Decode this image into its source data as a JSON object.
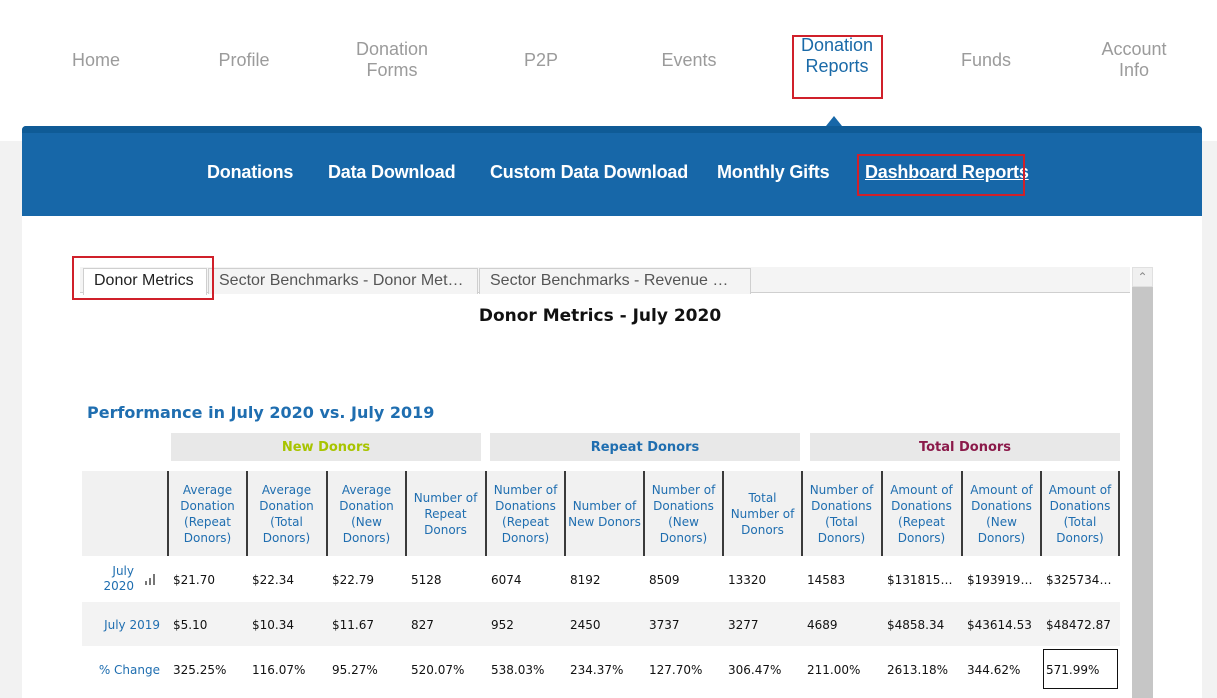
{
  "top_nav": {
    "items": [
      "Home",
      "Profile",
      "Donation\nForms",
      "P2P",
      "Events",
      "Donation\nReports",
      "Funds",
      "Account\nInfo"
    ],
    "active": "Donation Reports"
  },
  "sub_nav": {
    "items": [
      "Donations",
      "Data Download",
      "Custom Data Download",
      "Monthly Gifts",
      "Dashboard Reports"
    ],
    "active": "Dashboard Reports"
  },
  "tabs": [
    "Donor Metrics",
    "Sector Benchmarks - Donor Met…",
    "Sector Benchmarks - Revenue …"
  ],
  "report": {
    "title": "Donor Metrics - July 2020",
    "performance_title": "Performance in July 2020 vs. July 2019",
    "groups": [
      {
        "label": "New Donors",
        "color": "#a8c400"
      },
      {
        "label": "Repeat Donors",
        "color": "#1f6eb0"
      },
      {
        "label": "Total Donors",
        "color": "#8b1a4a"
      }
    ],
    "columns": [
      "Average\nDonation\n(Repeat\nDonors)",
      "Average\nDonation\n(Total\nDonors)",
      "Average\nDonation\n(New\nDonors)",
      "Number of\nRepeat\nDonors",
      "Number of\nDonations\n(Repeat\nDonors)",
      "Number of\nNew Donors",
      "Number of\nDonations\n(New\nDonors)",
      "Total\nNumber of\nDonors",
      "Number of\nDonations\n(Total\nDonors)",
      "Amount of\nDonations\n(Repeat\nDonors)",
      "Amount of\nDonations\n(New\nDonors)",
      "Amount of\nDonations\n(Total\nDonors)"
    ],
    "rows": [
      {
        "label": "July\n2020",
        "values": [
          "$21.70",
          "$22.34",
          "$22.79",
          "5128",
          "6074",
          "8192",
          "8509",
          "13320",
          "14583",
          "$131815…",
          "$193919…",
          "$325734…"
        ]
      },
      {
        "label": "July 2019",
        "values": [
          "$5.10",
          "$10.34",
          "$11.67",
          "827",
          "952",
          "2450",
          "3737",
          "3277",
          "4689",
          "$4858.34",
          "$43614.53",
          "$48472.87"
        ]
      },
      {
        "label": "% Change",
        "values": [
          "325.25%",
          "116.07%",
          "95.27%",
          "520.07%",
          "538.03%",
          "234.37%",
          "127.70%",
          "306.47%",
          "211.00%",
          "2613.18%",
          "344.62%",
          "571.99%"
        ]
      }
    ]
  },
  "scroll_up_glyph": "^"
}
